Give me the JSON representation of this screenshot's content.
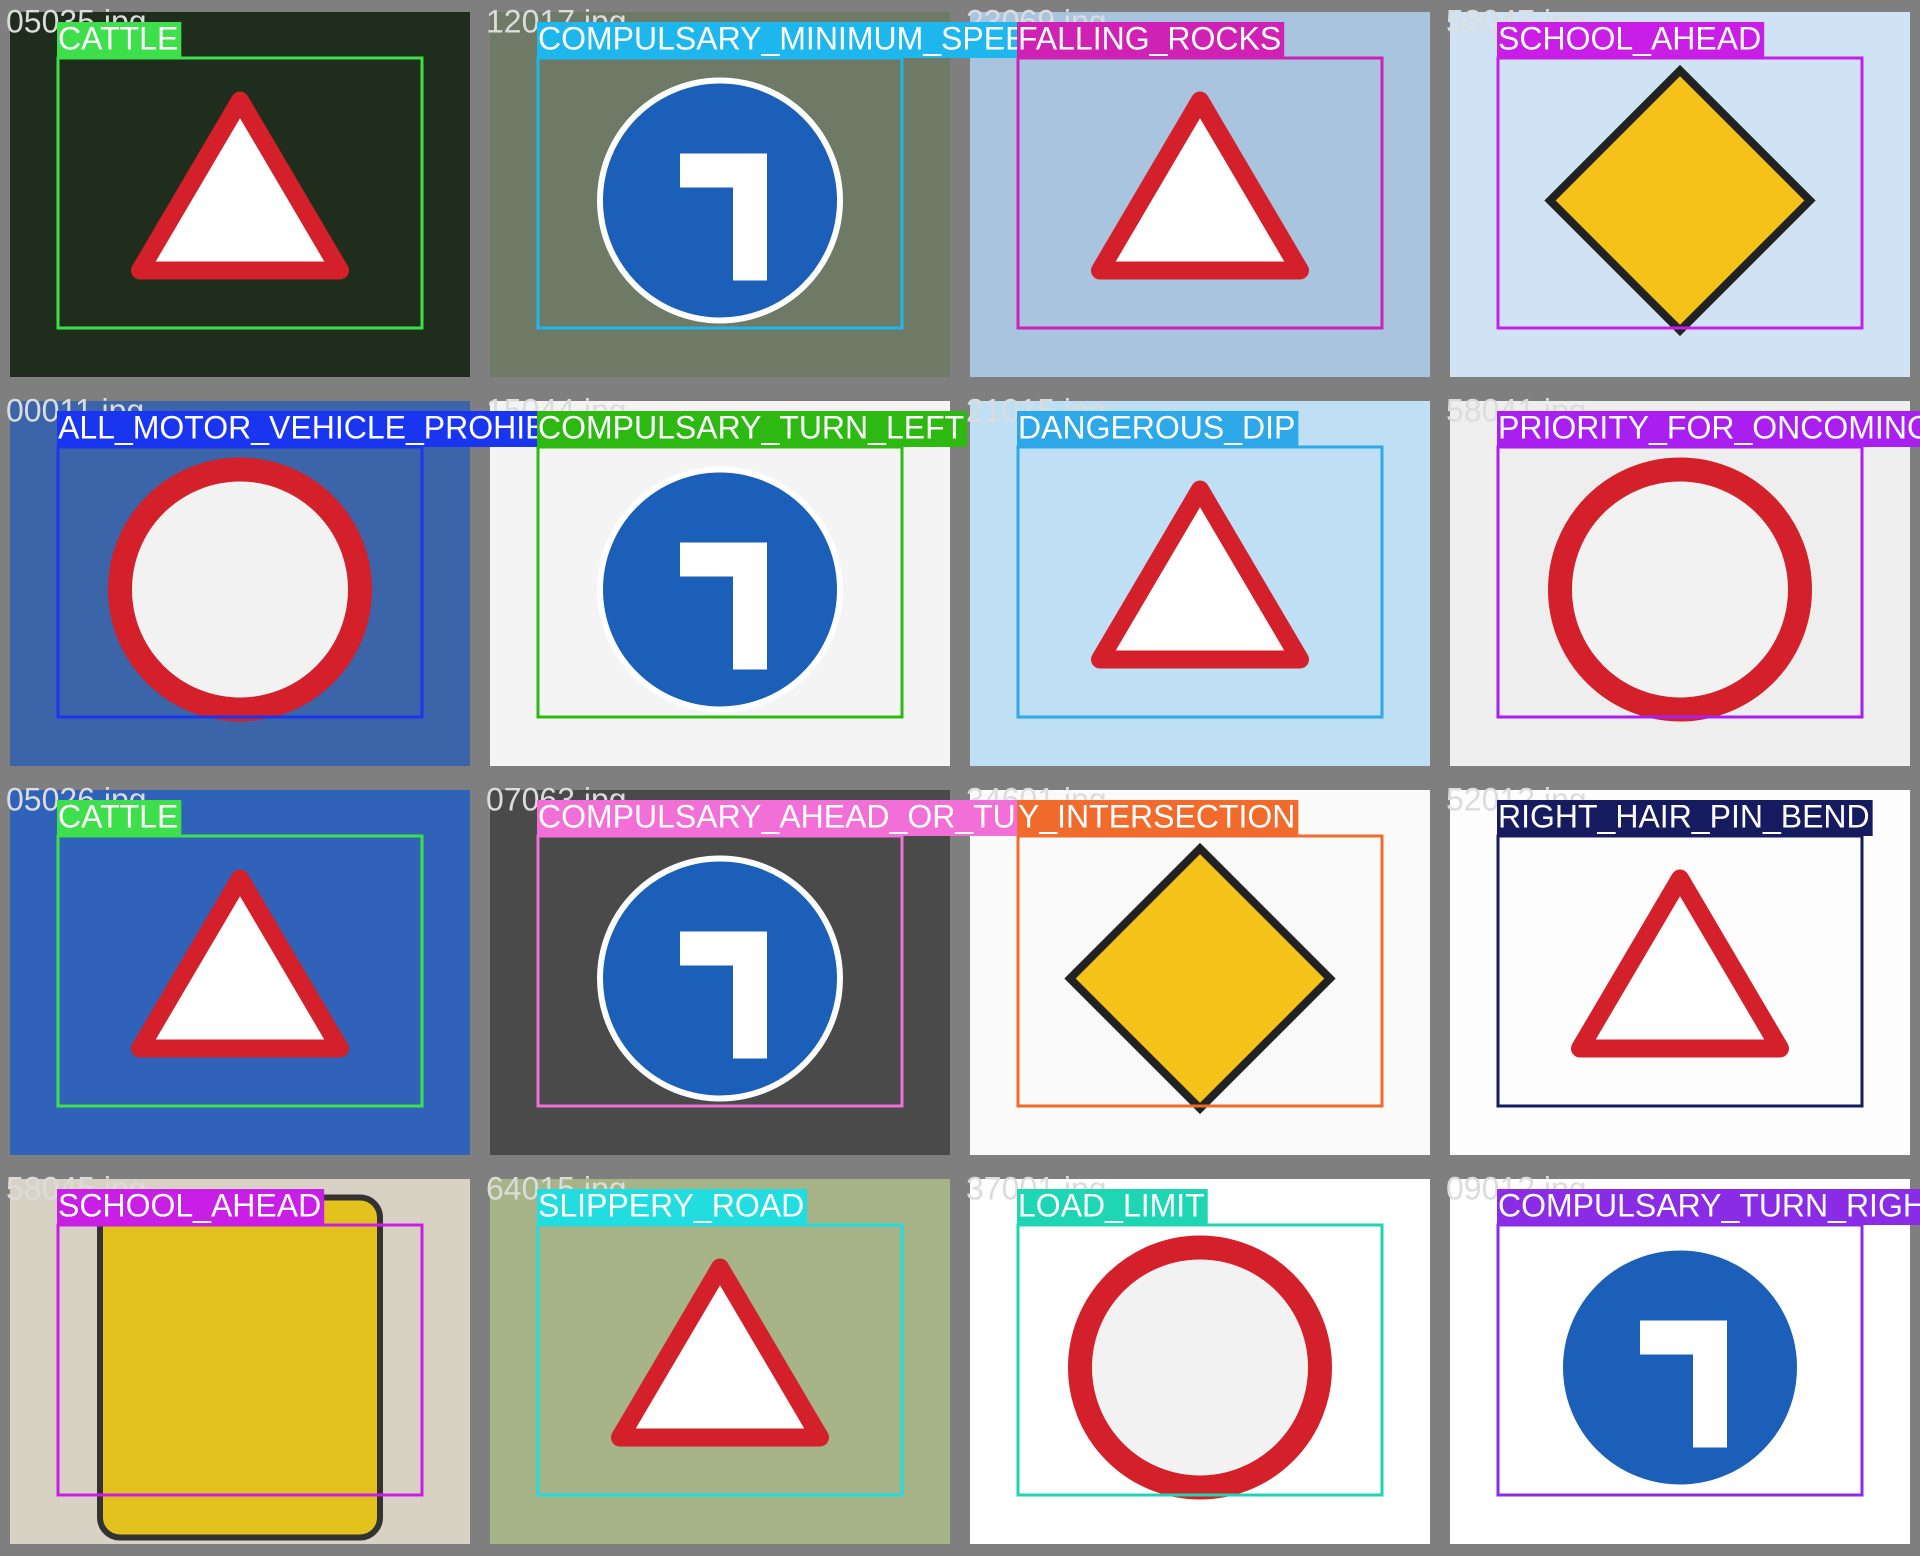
{
  "tiles": [
    {
      "file": "05035.jpg",
      "label": "CATTLE",
      "color": "#3ddf4a"
    },
    {
      "file": "12017.jpg",
      "label": "COMPULSARY_MINIMUM_SPEED",
      "color": "#1db7ee"
    },
    {
      "file": "23069.jpg",
      "label": "FALLING_ROCKS",
      "color": "#d021b5"
    },
    {
      "file": "58047.jpg",
      "label": "SCHOOL_AHEAD",
      "color": "#c81ee6"
    },
    {
      "file": "00011.jpg",
      "label": "ALL_MOTOR_VEHICLE_PROHIBITED",
      "color": "#1a35f0"
    },
    {
      "file": "15044.jpg",
      "label": "COMPULSARY_TURN_LEFT",
      "color": "#2db812"
    },
    {
      "file": "21015.jpg",
      "label": "DANGEROUS_DIP",
      "color": "#2ea8e8"
    },
    {
      "file": "58041.jpg",
      "label": "PRIORITY_FOR_ONCOMING_VEHICLES",
      "color": "#a81ff0"
    },
    {
      "file": "05026.jpg",
      "label": "CATTLE",
      "color": "#3ddf4a"
    },
    {
      "file": "07063.jpg",
      "label": "COMPULSARY_AHEAD_OR_TURN_LEFT",
      "color": "#f26fd8"
    },
    {
      "file": "34601.jpg",
      "label": "Y_INTERSECTION",
      "color": "#f06b2c"
    },
    {
      "file": "52012.jpg",
      "label": "RIGHT_HAIR_PIN_BEND",
      "color": "#161a5e"
    },
    {
      "file": "58045.jpg",
      "label": "SCHOOL_AHEAD",
      "color": "#c81ee6"
    },
    {
      "file": "64015.jpg",
      "label": "SLIPPERY_ROAD",
      "color": "#22dde0"
    },
    {
      "file": "37001.jpg",
      "label": "LOAD_LIMIT",
      "color": "#1ed6b4"
    },
    {
      "file": "09012.jpg",
      "label": "COMPULSARY_TURN_RIGHT_AHEAD",
      "color": "#8a2ce6"
    }
  ]
}
